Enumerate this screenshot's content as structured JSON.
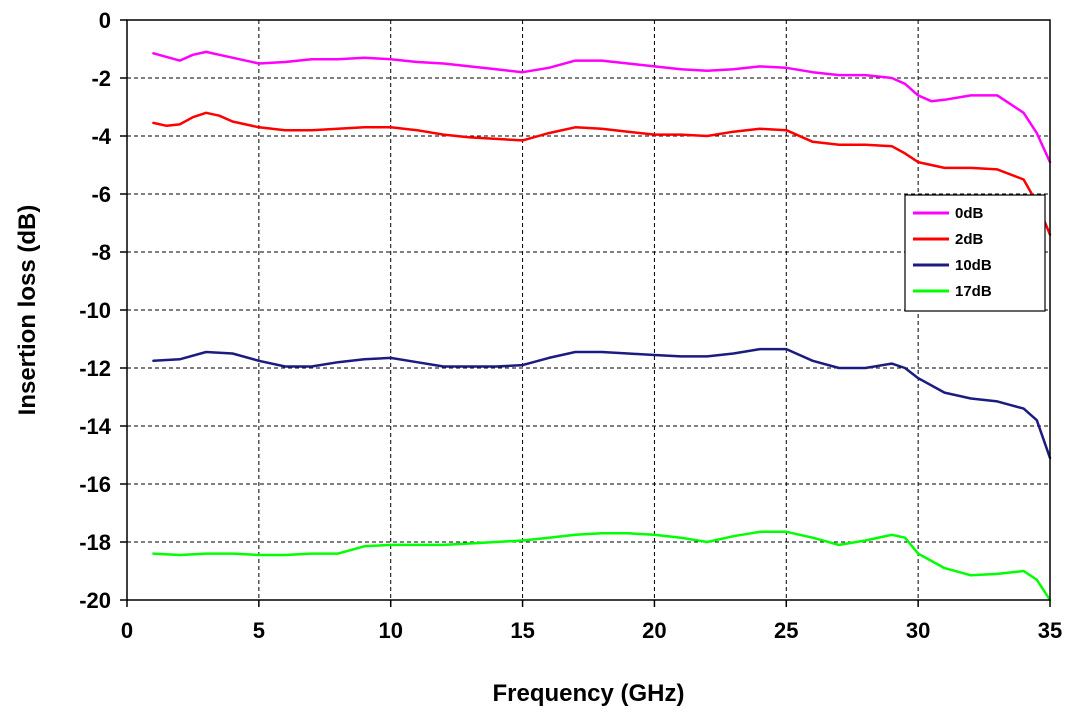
{
  "chart_data": {
    "type": "line",
    "title": "",
    "xlabel": "Frequency (GHz)",
    "ylabel": "Insertion loss (dB)",
    "xlim": [
      0,
      35
    ],
    "ylim": [
      -20,
      0
    ],
    "xticks": [
      0,
      5,
      10,
      15,
      20,
      25,
      30,
      35
    ],
    "yticks": [
      0,
      -2,
      -4,
      -6,
      -8,
      -10,
      -12,
      -14,
      -16,
      -18,
      -20
    ],
    "xtick_labels": [
      "0",
      "5",
      "10",
      "15",
      "20",
      "25",
      "30",
      "35"
    ],
    "ytick_labels": [
      "0",
      "-2",
      "-4",
      "-6",
      "-8",
      "-10",
      "-12",
      "-14",
      "-16",
      "-18",
      "-20"
    ],
    "grid": true,
    "legend_position": "right",
    "series": [
      {
        "name": "0dB",
        "color": "#ff00ff",
        "x": [
          1,
          2,
          2.5,
          3,
          3.5,
          4,
          5,
          6,
          7,
          8,
          9,
          10,
          11,
          12,
          13,
          14,
          15,
          16,
          17,
          18,
          19,
          20,
          21,
          22,
          23,
          24,
          25,
          26,
          27,
          28,
          29,
          29.5,
          30,
          30.5,
          31,
          32,
          33,
          34,
          34.5,
          35
        ],
        "y": [
          -1.15,
          -1.4,
          -1.2,
          -1.1,
          -1.2,
          -1.3,
          -1.5,
          -1.45,
          -1.35,
          -1.35,
          -1.3,
          -1.35,
          -1.45,
          -1.5,
          -1.6,
          -1.7,
          -1.8,
          -1.65,
          -1.4,
          -1.4,
          -1.5,
          -1.6,
          -1.7,
          -1.75,
          -1.7,
          -1.6,
          -1.65,
          -1.8,
          -1.9,
          -1.9,
          -2.0,
          -2.2,
          -2.6,
          -2.8,
          -2.75,
          -2.6,
          -2.6,
          -3.2,
          -3.9,
          -4.9
        ]
      },
      {
        "name": "2dB",
        "color": "#ff0000",
        "x": [
          1,
          1.5,
          2,
          2.5,
          3,
          3.5,
          4,
          5,
          6,
          7,
          8,
          9,
          10,
          11,
          12,
          13,
          14,
          15,
          16,
          17,
          18,
          19,
          20,
          21,
          22,
          23,
          24,
          25,
          26,
          27,
          28,
          29,
          29.5,
          30,
          31,
          32,
          33,
          34,
          34.5,
          35
        ],
        "y": [
          -3.55,
          -3.65,
          -3.6,
          -3.35,
          -3.2,
          -3.3,
          -3.5,
          -3.7,
          -3.8,
          -3.8,
          -3.75,
          -3.7,
          -3.7,
          -3.8,
          -3.95,
          -4.05,
          -4.1,
          -4.15,
          -3.9,
          -3.7,
          -3.75,
          -3.85,
          -3.95,
          -3.95,
          -4.0,
          -3.85,
          -3.75,
          -3.8,
          -4.2,
          -4.3,
          -4.3,
          -4.35,
          -4.6,
          -4.9,
          -5.1,
          -5.1,
          -5.15,
          -5.5,
          -6.3,
          -7.4
        ]
      },
      {
        "name": "10dB",
        "color": "#1c1c80",
        "x": [
          1,
          2,
          3,
          4,
          5,
          6,
          7,
          8,
          9,
          10,
          11,
          12,
          13,
          14,
          15,
          16,
          17,
          18,
          19,
          20,
          21,
          22,
          23,
          24,
          25,
          26,
          27,
          28,
          29,
          29.5,
          30,
          31,
          32,
          33,
          34,
          34.5,
          35
        ],
        "y": [
          -11.75,
          -11.7,
          -11.45,
          -11.5,
          -11.75,
          -11.95,
          -11.95,
          -11.8,
          -11.7,
          -11.65,
          -11.8,
          -11.95,
          -11.95,
          -11.95,
          -11.9,
          -11.65,
          -11.45,
          -11.45,
          -11.5,
          -11.55,
          -11.6,
          -11.6,
          -11.5,
          -11.35,
          -11.35,
          -11.75,
          -12.0,
          -12.0,
          -11.85,
          -12.0,
          -12.35,
          -12.85,
          -13.05,
          -13.15,
          -13.4,
          -13.8,
          -15.1
        ]
      },
      {
        "name": "17dB",
        "color": "#00ff00",
        "x": [
          1,
          2,
          3,
          4,
          5,
          6,
          7,
          8,
          9,
          10,
          11,
          12,
          13,
          14,
          15,
          16,
          17,
          18,
          19,
          20,
          21,
          22,
          23,
          24,
          25,
          26,
          27,
          28,
          29,
          29.5,
          30,
          31,
          32,
          33,
          34,
          34.5,
          35
        ],
        "y": [
          -18.4,
          -18.45,
          -18.4,
          -18.4,
          -18.45,
          -18.45,
          -18.4,
          -18.4,
          -18.15,
          -18.1,
          -18.1,
          -18.1,
          -18.05,
          -18.0,
          -17.95,
          -17.85,
          -17.75,
          -17.7,
          -17.7,
          -17.75,
          -17.85,
          -18.0,
          -17.8,
          -17.65,
          -17.65,
          -17.85,
          -18.1,
          -17.95,
          -17.75,
          -17.85,
          -18.4,
          -18.9,
          -19.15,
          -19.1,
          -19.0,
          -19.3,
          -20.0
        ]
      }
    ]
  }
}
